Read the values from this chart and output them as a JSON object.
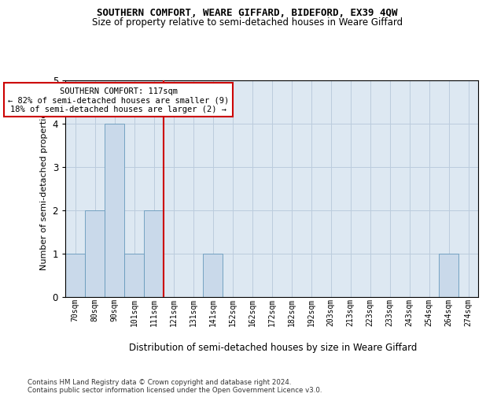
{
  "title": "SOUTHERN COMFORT, WEARE GIFFARD, BIDEFORD, EX39 4QW",
  "subtitle": "Size of property relative to semi-detached houses in Weare Giffard",
  "xlabel": "Distribution of semi-detached houses by size in Weare Giffard",
  "ylabel": "Number of semi-detached properties",
  "bin_labels": [
    "70sqm",
    "80sqm",
    "90sqm",
    "101sqm",
    "111sqm",
    "121sqm",
    "131sqm",
    "141sqm",
    "152sqm",
    "162sqm",
    "172sqm",
    "182sqm",
    "192sqm",
    "203sqm",
    "213sqm",
    "223sqm",
    "233sqm",
    "243sqm",
    "254sqm",
    "264sqm",
    "274sqm"
  ],
  "bar_values": [
    1,
    2,
    4,
    1,
    2,
    0,
    0,
    1,
    0,
    0,
    0,
    0,
    0,
    0,
    0,
    0,
    0,
    0,
    0,
    1,
    0
  ],
  "bar_color": "#c9d9ea",
  "bar_edge_color": "#6699bb",
  "property_line_bin_index": 5,
  "annotation_line1": "SOUTHERN COMFORT: 117sqm",
  "annotation_line2": "← 82% of semi-detached houses are smaller (9)",
  "annotation_line3": "18% of semi-detached houses are larger (2) →",
  "line_color": "#cc0000",
  "ylim": [
    0,
    5
  ],
  "yticks": [
    0,
    1,
    2,
    3,
    4,
    5
  ],
  "grid_color": "#bbccdd",
  "bg_color": "#dde8f2",
  "footer_line1": "Contains HM Land Registry data © Crown copyright and database right 2024.",
  "footer_line2": "Contains public sector information licensed under the Open Government Licence v3.0.",
  "title_fontsize": 9,
  "subtitle_fontsize": 8.5
}
